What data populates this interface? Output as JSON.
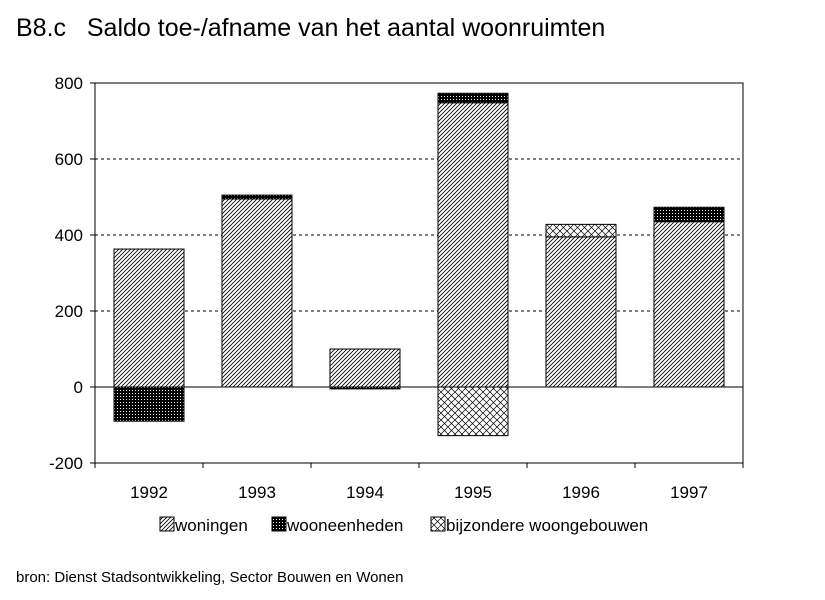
{
  "chart_data": {
    "type": "bar",
    "stacked": true,
    "title": "B8.c   Saldo toe-/afname van het aantal woonruimten",
    "xlabel": "",
    "ylabel": "",
    "categories": [
      "1992",
      "1993",
      "1994",
      "1995",
      "1996",
      "1997"
    ],
    "series": [
      {
        "name": "woningen",
        "values": [
          363,
          495,
          100,
          748,
          395,
          435
        ],
        "pattern": "diagonal-hatch"
      },
      {
        "name": "wooneenheden",
        "values": [
          -90,
          10,
          -5,
          25,
          0,
          38
        ],
        "pattern": "dense-dark"
      },
      {
        "name": "bijzondere woongebouwen",
        "values": [
          0,
          0,
          0,
          -128,
          33,
          0
        ],
        "pattern": "crosshatch"
      }
    ],
    "ylim": [
      -200,
      800
    ],
    "yticks": [
      "-200",
      "0",
      "200",
      "400",
      "600",
      "800"
    ],
    "grid": "horizontal dashed",
    "legend_position": "bottom",
    "colors": {
      "fill": "#ffffff",
      "stroke": "#000000",
      "dark": "#000000"
    }
  },
  "source_note": "bron: Dienst Stadsontwikkeling, Sector Bouwen en Wonen"
}
